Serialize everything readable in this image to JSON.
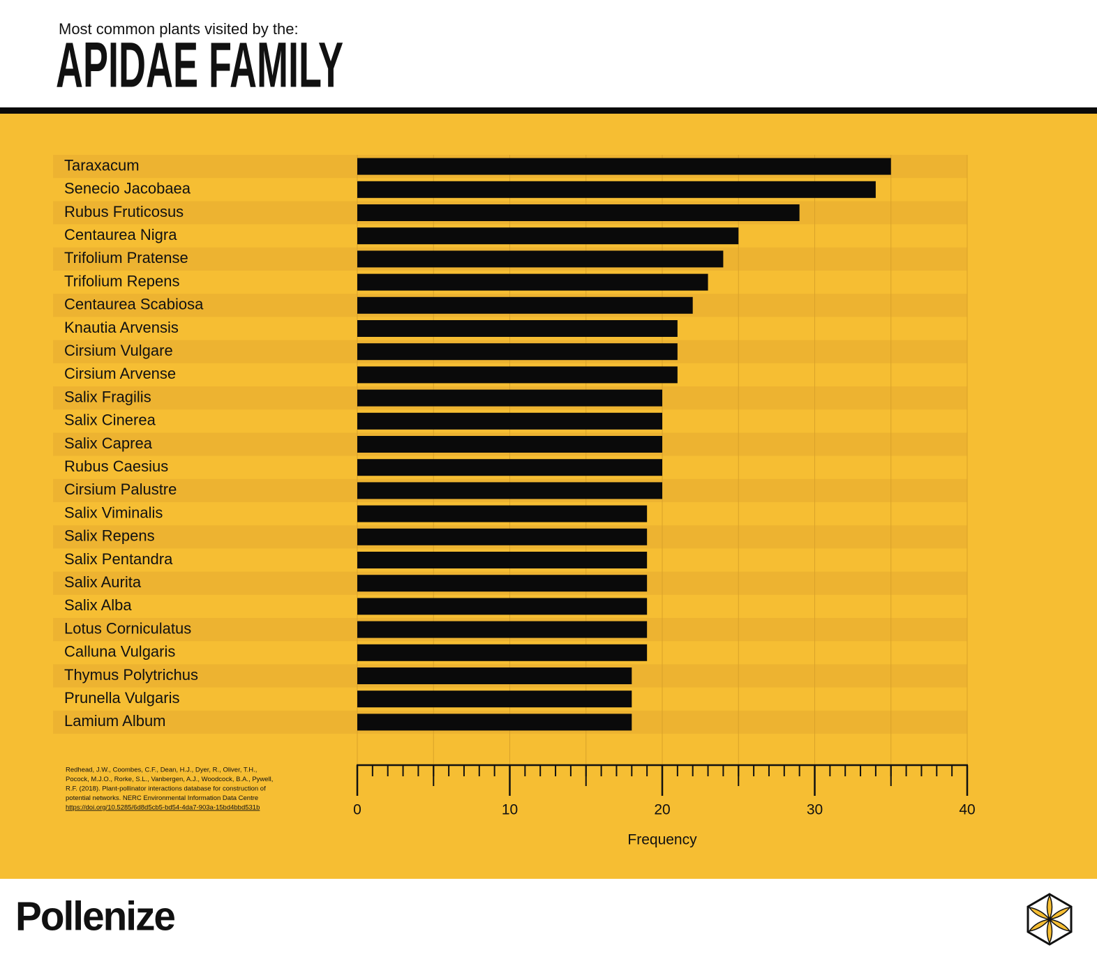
{
  "header": {
    "subtitle": "Most common plants visited by the:",
    "title": "APIDAE FAMILY"
  },
  "chart_data": {
    "type": "barh",
    "categories": [
      "Taraxacum",
      "Senecio Jacobaea",
      "Rubus Fruticosus",
      "Centaurea Nigra",
      "Trifolium Pratense",
      "Trifolium Repens",
      "Centaurea Scabiosa",
      "Knautia Arvensis",
      "Cirsium Vulgare",
      "Cirsium Arvense",
      "Salix Fragilis",
      "Salix Cinerea",
      "Salix Caprea",
      "Rubus Caesius",
      "Cirsium Palustre",
      "Salix Viminalis",
      "Salix Repens",
      "Salix Pentandra",
      "Salix Aurita",
      "Salix Alba",
      "Lotus Corniculatus",
      "Calluna Vulgaris",
      "Thymus Polytrichus",
      "Prunella Vulgaris",
      "Lamium Album"
    ],
    "values": [
      35,
      34,
      29,
      25,
      24,
      23,
      22,
      21,
      21,
      21,
      20,
      20,
      20,
      20,
      20,
      19,
      19,
      19,
      19,
      19,
      19,
      19,
      18,
      18,
      18
    ],
    "color": "#0a0a0a",
    "xlabel": "Frequency",
    "xlim": [
      0,
      40
    ],
    "xticks": [
      0,
      10,
      20,
      30,
      40
    ],
    "xgrid": [
      0,
      5,
      10,
      15,
      20,
      25,
      30,
      35,
      40
    ],
    "xticks_minor": [
      0,
      1,
      2,
      3,
      4,
      5,
      6,
      7,
      8,
      9,
      10,
      11,
      12,
      13,
      14,
      15,
      16,
      17,
      18,
      19,
      20,
      21,
      22,
      23,
      24,
      25,
      26,
      27,
      28,
      29,
      30,
      31,
      32,
      33,
      34,
      35,
      36,
      37,
      38,
      39,
      40
    ],
    "grid": true
  },
  "source": [
    "Redhead, J.W., Coombes, C.F., Dean, H.J., Dyer, R., Oliver, T.H.,",
    "Pocock, M.J.O., Rorke, S.L., Vanbergen, A.J., Woodcock, B.A., Pywell,",
    "R.F. (2018). Plant-pollinator interactions database for construction of",
    "potential networks. NERC Environmental Information Data Centre",
    "https://doi.org/10.5285/6d8d5cb5-bd54-4da7-903a-15bd4bbd531b"
  ],
  "footer": {
    "brand": "Pollenize"
  }
}
